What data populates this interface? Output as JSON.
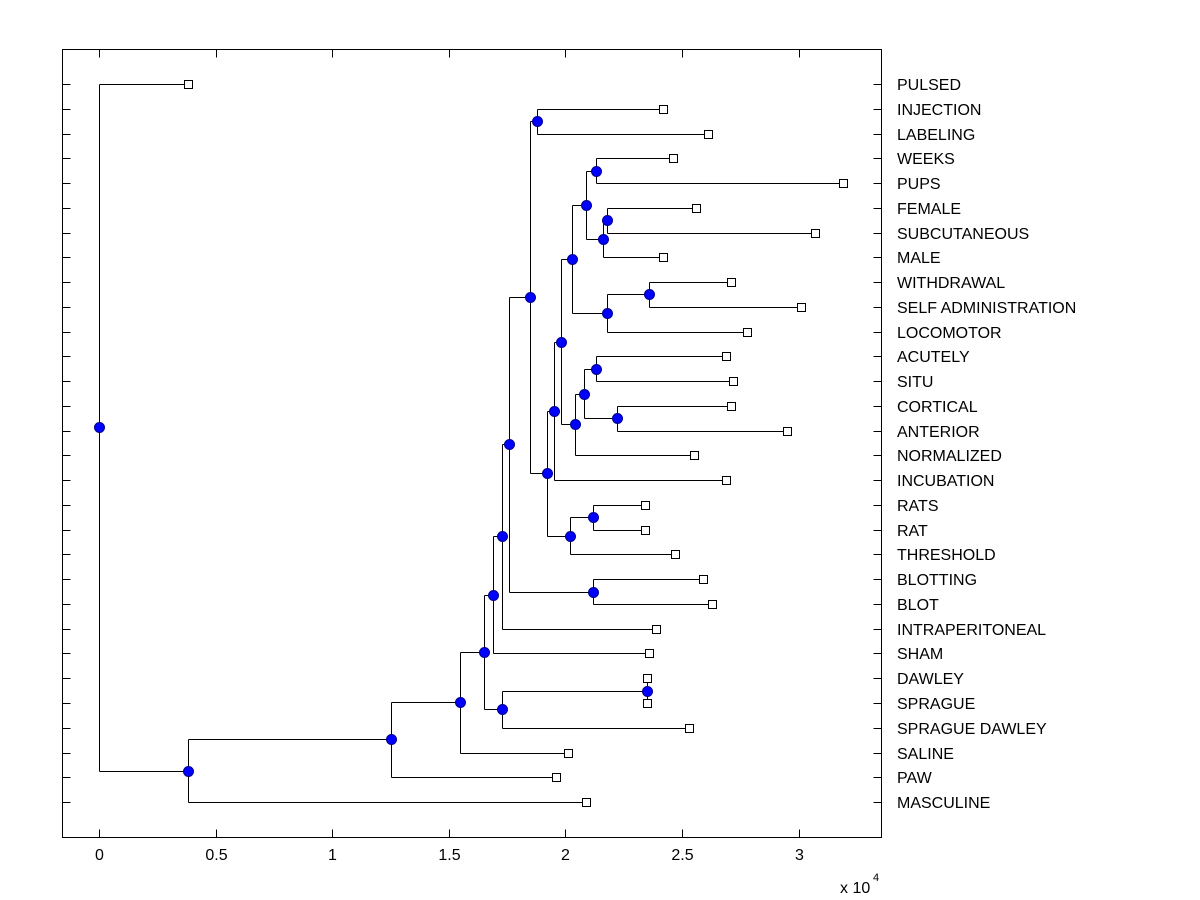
{
  "chart_data": {
    "type": "dendrogram",
    "title": "",
    "xlabel": "",
    "ylabel": "",
    "x_multiplier_label": "x 10",
    "x_multiplier_exponent": "4",
    "xlim": [
      -0.16,
      3.35
    ],
    "xticks": [
      0,
      0.5,
      1,
      1.5,
      2,
      2.5,
      3
    ],
    "xtick_labels": [
      "0",
      "0.5",
      "1",
      "1.5",
      "2",
      "2.5",
      "3"
    ],
    "grid": false,
    "leaf_marker": "open-square",
    "node_marker": "filled-circle",
    "node_color": "#0000ff",
    "line_color": "#000000",
    "leaves": [
      {
        "id": "L0",
        "label": "PULSED",
        "x": 0.38
      },
      {
        "id": "L1",
        "label": "INJECTION",
        "x": 2.42
      },
      {
        "id": "L2",
        "label": "LABELING",
        "x": 2.61
      },
      {
        "id": "L3",
        "label": "WEEKS",
        "x": 2.46
      },
      {
        "id": "L4",
        "label": "PUPS",
        "x": 3.19
      },
      {
        "id": "L5",
        "label": "FEMALE",
        "x": 2.56
      },
      {
        "id": "L6",
        "label": "SUBCUTANEOUS",
        "x": 3.07
      },
      {
        "id": "L7",
        "label": "MALE",
        "x": 2.42
      },
      {
        "id": "L8",
        "label": "WITHDRAWAL",
        "x": 2.71
      },
      {
        "id": "L9",
        "label": "SELF ADMINISTRATION",
        "x": 3.01
      },
      {
        "id": "L10",
        "label": "LOCOMOTOR",
        "x": 2.78
      },
      {
        "id": "L11",
        "label": "ACUTELY",
        "x": 2.69
      },
      {
        "id": "L12",
        "label": "SITU",
        "x": 2.72
      },
      {
        "id": "L13",
        "label": "CORTICAL",
        "x": 2.71
      },
      {
        "id": "L14",
        "label": "ANTERIOR",
        "x": 2.95
      },
      {
        "id": "L15",
        "label": "NORMALIZED",
        "x": 2.55
      },
      {
        "id": "L16",
        "label": "INCUBATION",
        "x": 2.69
      },
      {
        "id": "L17",
        "label": "RATS",
        "x": 2.34
      },
      {
        "id": "L18",
        "label": "RAT",
        "x": 2.34
      },
      {
        "id": "L19",
        "label": "THRESHOLD",
        "x": 2.47
      },
      {
        "id": "L20",
        "label": "BLOTTING",
        "x": 2.59
      },
      {
        "id": "L21",
        "label": "BLOT",
        "x": 2.63
      },
      {
        "id": "L22",
        "label": "INTRAPERITONEAL",
        "x": 2.39
      },
      {
        "id": "L23",
        "label": "SHAM",
        "x": 2.36
      },
      {
        "id": "L24",
        "label": "DAWLEY",
        "x": 2.35
      },
      {
        "id": "L25",
        "label": "SPRAGUE",
        "x": 2.35
      },
      {
        "id": "L26",
        "label": "SPRAGUE DAWLEY",
        "x": 2.53
      },
      {
        "id": "L27",
        "label": "SALINE",
        "x": 2.01
      },
      {
        "id": "L28",
        "label": "PAW",
        "x": 1.96
      },
      {
        "id": "L29",
        "label": "MASCULINE",
        "x": 2.09
      }
    ],
    "nodes": [
      {
        "id": "N_inj",
        "x": 1.88,
        "row": 1.5,
        "children": [
          "L1",
          "L2"
        ]
      },
      {
        "id": "N_wp",
        "x": 2.13,
        "row": 3.5,
        "children": [
          "L3",
          "L4"
        ]
      },
      {
        "id": "N_fs",
        "x": 2.18,
        "row": 5.5,
        "children": [
          "L5",
          "L6"
        ]
      },
      {
        "id": "N_fsm",
        "x": 2.16,
        "row": 6.25,
        "children": [
          "N_fs",
          "L7"
        ]
      },
      {
        "id": "N_a",
        "x": 2.09,
        "row": 4.9,
        "children": [
          "N_wp",
          "N_fsm"
        ]
      },
      {
        "id": "N_ws",
        "x": 2.36,
        "row": 8.5,
        "children": [
          "L8",
          "L9"
        ]
      },
      {
        "id": "N_wsl",
        "x": 2.18,
        "row": 9.25,
        "children": [
          "N_ws",
          "L10"
        ]
      },
      {
        "id": "N_b",
        "x": 2.03,
        "row": 7.07,
        "children": [
          "N_a",
          "N_wsl"
        ]
      },
      {
        "id": "N_as",
        "x": 2.13,
        "row": 11.5,
        "children": [
          "L11",
          "L12"
        ]
      },
      {
        "id": "N_ca",
        "x": 2.22,
        "row": 13.5,
        "children": [
          "L13",
          "L14"
        ]
      },
      {
        "id": "N_c",
        "x": 2.08,
        "row": 12.52,
        "children": [
          "N_as",
          "N_ca"
        ]
      },
      {
        "id": "N_cn",
        "x": 2.04,
        "row": 13.73,
        "children": [
          "N_c",
          "L15"
        ]
      },
      {
        "id": "N_d",
        "x": 1.98,
        "row": 10.42,
        "children": [
          "N_b",
          "N_cn"
        ]
      },
      {
        "id": "N_di",
        "x": 1.95,
        "row": 13.2,
        "children": [
          "N_d",
          "L16"
        ]
      },
      {
        "id": "N_rr",
        "x": 2.12,
        "row": 17.5,
        "children": [
          "L17",
          "L18"
        ]
      },
      {
        "id": "N_rrt",
        "x": 2.02,
        "row": 18.25,
        "children": [
          "N_rr",
          "L19"
        ]
      },
      {
        "id": "N_e",
        "x": 1.92,
        "row": 15.71,
        "children": [
          "N_di",
          "N_rrt"
        ]
      },
      {
        "id": "N_top",
        "x": 1.85,
        "row": 8.6,
        "children": [
          "N_inj",
          "N_e"
        ]
      },
      {
        "id": "N_bb",
        "x": 2.12,
        "row": 20.5,
        "children": [
          "L20",
          "L21"
        ]
      },
      {
        "id": "N_f",
        "x": 1.76,
        "row": 14.54,
        "children": [
          "N_top",
          "N_bb"
        ]
      },
      {
        "id": "N_g",
        "x": 1.73,
        "row": 18.25,
        "children": [
          "N_f",
          "L22"
        ]
      },
      {
        "id": "N_h",
        "x": 1.69,
        "row": 20.64,
        "children": [
          "N_g",
          "L23"
        ]
      },
      {
        "id": "N_ds",
        "x": 2.35,
        "row": 24.5,
        "children": [
          "L24",
          "L25"
        ]
      },
      {
        "id": "N_dsd",
        "x": 1.73,
        "row": 25.25,
        "children": [
          "N_ds",
          "L26"
        ]
      },
      {
        "id": "N_i",
        "x": 1.65,
        "row": 22.93,
        "children": [
          "N_h",
          "N_dsd"
        ]
      },
      {
        "id": "N_j",
        "x": 1.55,
        "row": 24.96,
        "children": [
          "N_i",
          "L27"
        ]
      },
      {
        "id": "N_k",
        "x": 1.25,
        "row": 26.45,
        "children": [
          "N_j",
          "L28"
        ]
      },
      {
        "id": "N_l",
        "x": 0.38,
        "row": 27.74,
        "children": [
          "N_k",
          "L29"
        ]
      },
      {
        "id": "N_root",
        "x": 0.0,
        "row": 13.85,
        "children": [
          "L0",
          "N_l"
        ]
      }
    ]
  }
}
